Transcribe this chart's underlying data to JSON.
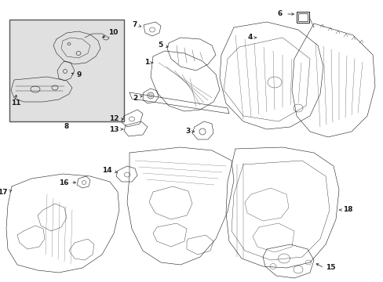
{
  "bg_color": "#ffffff",
  "line_color": "#1a1a1a",
  "inset_bg": "#e0e0e0",
  "fig_width": 4.89,
  "fig_height": 3.6,
  "dpi": 100,
  "lw": 0.7,
  "lw_thin": 0.4,
  "fontsize": 6.5
}
